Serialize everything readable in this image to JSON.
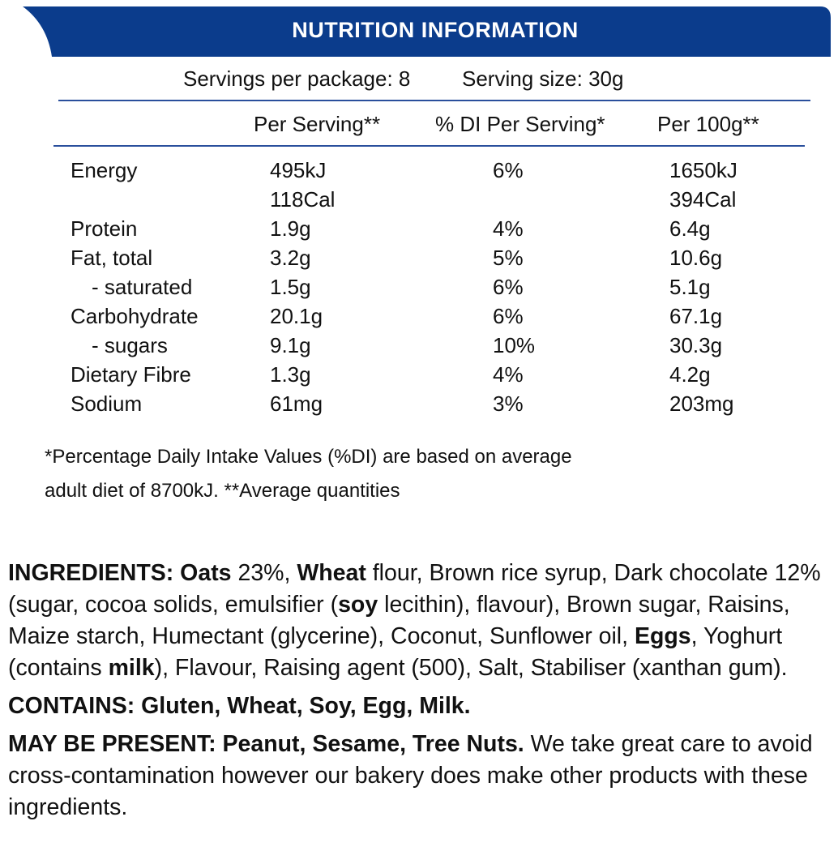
{
  "header": {
    "title": "NUTRITION INFORMATION"
  },
  "servings": {
    "per_package": "Servings per package: 8",
    "size": "Serving size: 30g"
  },
  "table": {
    "columns": [
      "Per Serving**",
      "% DI Per Serving*",
      "Per 100g**"
    ],
    "rows": [
      {
        "name": "Energy",
        "per_serving": [
          "495kJ",
          "118Cal"
        ],
        "di": "6%",
        "per_100g": [
          "1650kJ",
          "394Cal"
        ]
      },
      {
        "name": "Protein",
        "per_serving": [
          "1.9g"
        ],
        "di": "4%",
        "per_100g": [
          "6.4g"
        ]
      },
      {
        "name": "Fat, total",
        "per_serving": [
          "3.2g"
        ],
        "di": "5%",
        "per_100g": [
          "10.6g"
        ]
      },
      {
        "name": "- saturated",
        "per_serving": [
          "1.5g"
        ],
        "di": "6%",
        "per_100g": [
          "5.1g"
        ]
      },
      {
        "name": "Carbohydrate",
        "per_serving": [
          "20.1g"
        ],
        "di": "6%",
        "per_100g": [
          "67.1g"
        ]
      },
      {
        "name": "- sugars",
        "per_serving": [
          "9.1g"
        ],
        "di": "10%",
        "per_100g": [
          "30.3g"
        ]
      },
      {
        "name": "Dietary Fibre",
        "per_serving": [
          "1.3g"
        ],
        "di": "4%",
        "per_100g": [
          "4.2g"
        ]
      },
      {
        "name": "Sodium",
        "per_serving": [
          "61mg"
        ],
        "di": "3%",
        "per_100g": [
          "203mg"
        ]
      }
    ]
  },
  "footnote": [
    "*Percentage Daily Intake Values (%DI) are based on average",
    "adult diet of 8700kJ. **Average quantities"
  ],
  "paragraphs": [
    [
      {
        "text": "INGREDIENTS: Oats",
        "bold": true
      },
      {
        "text": " 23%, ",
        "bold": false
      },
      {
        "text": "Wheat",
        "bold": true
      },
      {
        "text": " flour, Brown rice syrup, Dark chocolate 12% (sugar, cocoa solids, emulsifier (",
        "bold": false
      },
      {
        "text": "soy",
        "bold": true
      },
      {
        "text": " lecithin), flavour), Brown sugar, Raisins, Maize starch, Humectant (glycerine), Coconut, Sunflower oil, ",
        "bold": false
      },
      {
        "text": "Eggs",
        "bold": true
      },
      {
        "text": ", Yoghurt (contains ",
        "bold": false
      },
      {
        "text": "milk",
        "bold": true
      },
      {
        "text": "), Flavour, Raising agent (500), Salt, Stabiliser (xanthan gum).",
        "bold": false
      }
    ],
    [
      {
        "text": "CONTAINS: Gluten, Wheat, Soy, Egg, Milk.",
        "bold": true
      }
    ],
    [
      {
        "text": "MAY BE PRESENT: Peanut, Sesame, Tree Nuts.",
        "bold": true
      },
      {
        "text": " We take great care to avoid cross-contamination however our bakery does make other products with these ingredients.",
        "bold": false
      }
    ]
  ]
}
